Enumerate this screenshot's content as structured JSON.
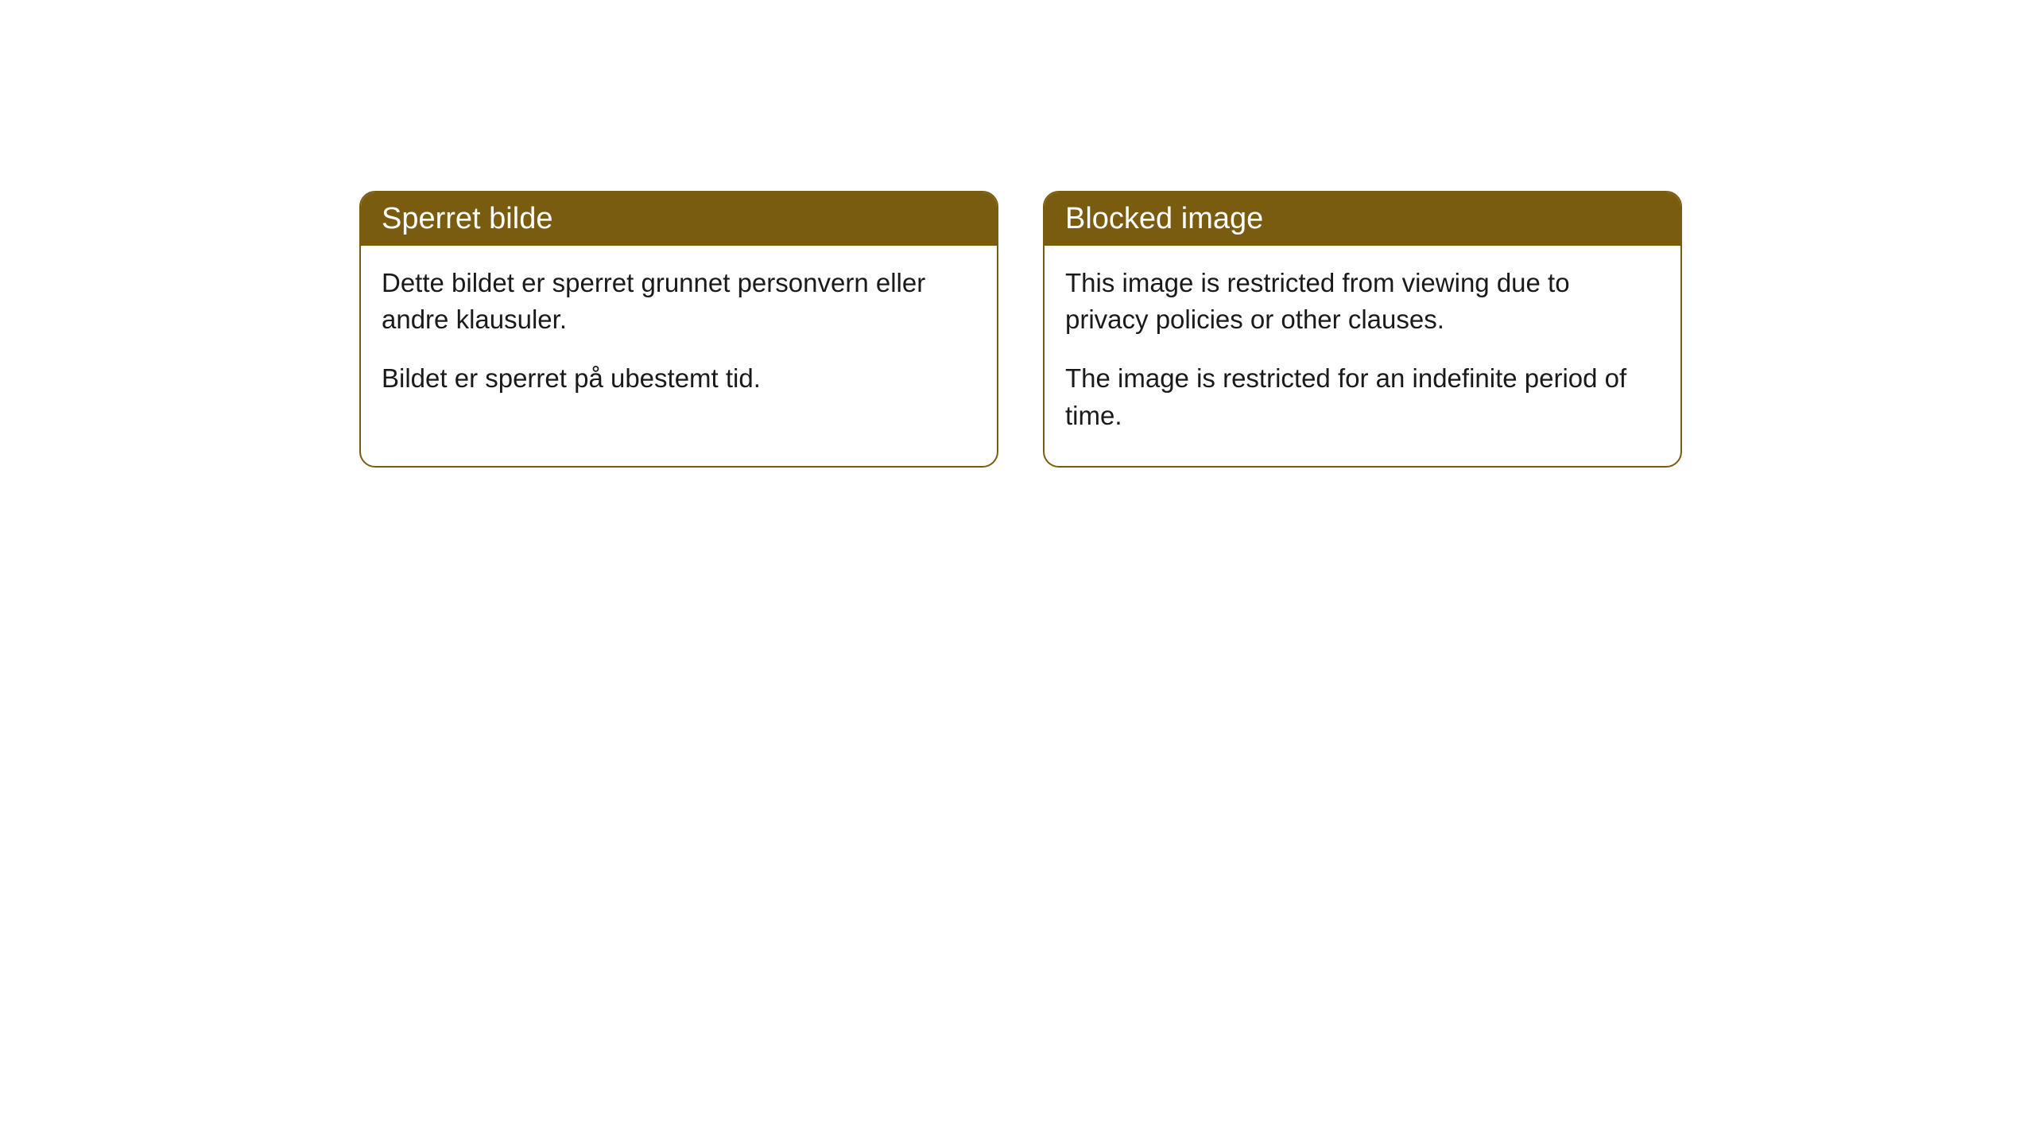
{
  "cards": [
    {
      "title": "Sperret bilde",
      "paragraph1": "Dette bildet er sperret grunnet personvern eller andre klausuler.",
      "paragraph2": "Bildet er sperret på ubestemt tid."
    },
    {
      "title": "Blocked image",
      "paragraph1": "This image is restricted from viewing due to privacy policies or other clauses.",
      "paragraph2": "The image is restricted for an indefinite period of time."
    }
  ],
  "styling": {
    "header_background": "#7a5c11",
    "header_text_color": "#ffffff",
    "body_background": "#ffffff",
    "body_text_color": "#1a1a1a",
    "border_color": "#7a5c11",
    "border_radius": 20,
    "title_fontsize": 38,
    "body_fontsize": 33
  }
}
